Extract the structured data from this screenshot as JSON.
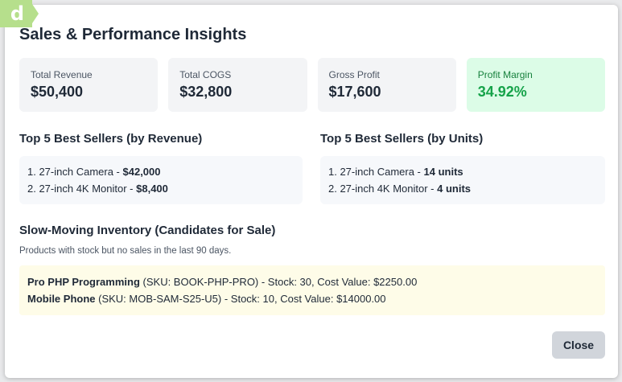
{
  "logo": {
    "text": "d"
  },
  "modal": {
    "title": "Sales & Performance Insights",
    "stats": [
      {
        "label": "Total Revenue",
        "value": "$50,400"
      },
      {
        "label": "Total COGS",
        "value": "$32,800"
      },
      {
        "label": "Gross Profit",
        "value": "$17,600"
      },
      {
        "label": "Profit Margin",
        "value": "34.92%"
      }
    ],
    "best_revenue": {
      "title": "Top 5 Best Sellers (by Revenue)",
      "items": [
        {
          "prefix": "1. 27-inch Camera - ",
          "value": "$42,000"
        },
        {
          "prefix": "2. 27-inch 4K Monitor - ",
          "value": "$8,400"
        }
      ]
    },
    "best_units": {
      "title": "Top 5 Best Sellers (by Units)",
      "items": [
        {
          "prefix": "1. 27-inch Camera - ",
          "value": "14 units"
        },
        {
          "prefix": "2. 27-inch 4K Monitor - ",
          "value": "4 units"
        }
      ]
    },
    "slow_moving": {
      "title": "Slow-Moving Inventory (Candidates for Sale)",
      "description": "Products with stock but no sales in the last 90 days.",
      "items": [
        {
          "name": "Pro PHP Programming",
          "details": " (SKU: BOOK-PHP-PRO) - Stock: 30, Cost Value: $2250.00"
        },
        {
          "name": "Mobile Phone",
          "details": " (SKU: MOB-SAM-S25-U5) - Stock: 10, Cost Value: $14000.00"
        }
      ]
    },
    "close_label": "Close"
  },
  "colors": {
    "accent_green": "#16a34a",
    "green_bg": "#dcfce7",
    "slow_bg": "#fefce8"
  }
}
